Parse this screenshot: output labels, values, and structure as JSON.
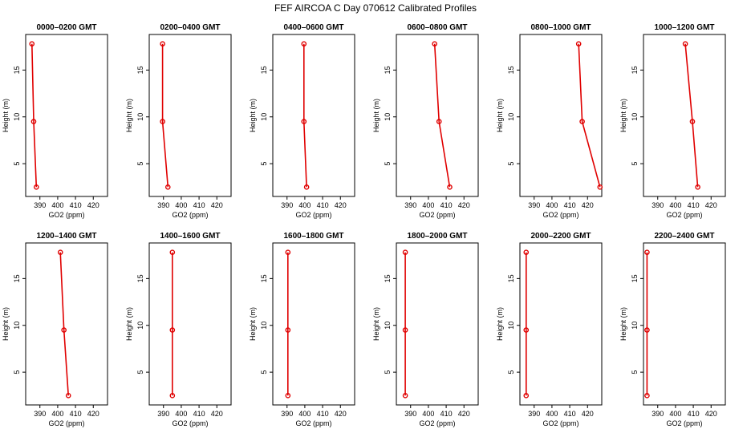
{
  "figure_title": "FEF AIRCOA C  Day 070612  Calibrated Profiles",
  "series_color": "#e00000",
  "chart_data": [
    {
      "type": "line",
      "title": "0000–0200 GMT",
      "xlabel": "GO2 (ppm)",
      "ylabel": "Height (m)",
      "xlim": [
        382,
        428
      ],
      "ylim": [
        1.5,
        18.8
      ],
      "xticks": [
        390,
        400,
        410,
        420
      ],
      "yticks": [
        5,
        10,
        15
      ],
      "x": [
        385.5,
        386.5,
        388
      ],
      "y": [
        17.8,
        9.5,
        2.5
      ]
    },
    {
      "type": "line",
      "title": "0200–0400 GMT",
      "xlabel": "GO2 (ppm)",
      "ylabel": "Height (m)",
      "xlim": [
        382,
        428
      ],
      "ylim": [
        1.5,
        18.8
      ],
      "xticks": [
        390,
        400,
        410,
        420
      ],
      "yticks": [
        5,
        10,
        15
      ],
      "x": [
        389.5,
        389.5,
        392.5
      ],
      "y": [
        17.8,
        9.5,
        2.5
      ]
    },
    {
      "type": "line",
      "title": "0400–0600 GMT",
      "xlabel": "GO2 (ppm)",
      "ylabel": "Height (m)",
      "xlim": [
        382,
        428
      ],
      "ylim": [
        1.5,
        18.8
      ],
      "xticks": [
        390,
        400,
        410,
        420
      ],
      "yticks": [
        5,
        10,
        15
      ],
      "x": [
        399.5,
        399.5,
        401
      ],
      "y": [
        17.8,
        9.5,
        2.5
      ]
    },
    {
      "type": "line",
      "title": "0600–0800 GMT",
      "xlabel": "GO2 (ppm)",
      "ylabel": "Height (m)",
      "xlim": [
        382,
        428
      ],
      "ylim": [
        1.5,
        18.8
      ],
      "xticks": [
        390,
        400,
        410,
        420
      ],
      "yticks": [
        5,
        10,
        15
      ],
      "x": [
        403.5,
        406,
        412
      ],
      "y": [
        17.8,
        9.5,
        2.5
      ]
    },
    {
      "type": "line",
      "title": "0800–1000 GMT",
      "xlabel": "GO2 (ppm)",
      "ylabel": "Height (m)",
      "xlim": [
        382,
        428
      ],
      "ylim": [
        1.5,
        18.8
      ],
      "xticks": [
        390,
        400,
        410,
        420
      ],
      "yticks": [
        5,
        10,
        15
      ],
      "x": [
        415,
        417,
        427
      ],
      "y": [
        17.8,
        9.5,
        2.5
      ]
    },
    {
      "type": "line",
      "title": "1000–1200 GMT",
      "xlabel": "GO2 (ppm)",
      "ylabel": "Height (m)",
      "xlim": [
        382,
        428
      ],
      "ylim": [
        1.5,
        18.8
      ],
      "xticks": [
        390,
        400,
        410,
        420
      ],
      "yticks": [
        5,
        10,
        15
      ],
      "x": [
        405.5,
        409.5,
        412.5
      ],
      "y": [
        17.8,
        9.5,
        2.5
      ]
    },
    {
      "type": "line",
      "title": "1200–1400 GMT",
      "xlabel": "GO2 (ppm)",
      "ylabel": "Height (m)",
      "xlim": [
        382,
        428
      ],
      "ylim": [
        1.5,
        18.8
      ],
      "xticks": [
        390,
        400,
        410,
        420
      ],
      "yticks": [
        5,
        10,
        15
      ],
      "x": [
        401.5,
        403.5,
        406
      ],
      "y": [
        17.8,
        9.5,
        2.5
      ]
    },
    {
      "type": "line",
      "title": "1400–1600 GMT",
      "xlabel": "GO2 (ppm)",
      "ylabel": "Height (m)",
      "xlim": [
        382,
        428
      ],
      "ylim": [
        1.5,
        18.8
      ],
      "xticks": [
        390,
        400,
        410,
        420
      ],
      "yticks": [
        5,
        10,
        15
      ],
      "x": [
        395,
        395,
        395
      ],
      "y": [
        17.8,
        9.5,
        2.5
      ]
    },
    {
      "type": "line",
      "title": "1600–1800 GMT",
      "xlabel": "GO2 (ppm)",
      "ylabel": "Height (m)",
      "xlim": [
        382,
        428
      ],
      "ylim": [
        1.5,
        18.8
      ],
      "xticks": [
        390,
        400,
        410,
        420
      ],
      "yticks": [
        5,
        10,
        15
      ],
      "x": [
        390.5,
        390.5,
        390.5
      ],
      "y": [
        17.8,
        9.5,
        2.5
      ]
    },
    {
      "type": "line",
      "title": "1800–2000 GMT",
      "xlabel": "GO2 (ppm)",
      "ylabel": "Height (m)",
      "xlim": [
        382,
        428
      ],
      "ylim": [
        1.5,
        18.8
      ],
      "xticks": [
        390,
        400,
        410,
        420
      ],
      "yticks": [
        5,
        10,
        15
      ],
      "x": [
        387,
        387,
        387
      ],
      "y": [
        17.8,
        9.5,
        2.5
      ]
    },
    {
      "type": "line",
      "title": "2000–2200 GMT",
      "xlabel": "GO2 (ppm)",
      "ylabel": "Height (m)",
      "xlim": [
        382,
        428
      ],
      "ylim": [
        1.5,
        18.8
      ],
      "xticks": [
        390,
        400,
        410,
        420
      ],
      "yticks": [
        5,
        10,
        15
      ],
      "x": [
        385.5,
        385.5,
        385.5
      ],
      "y": [
        17.8,
        9.5,
        2.5
      ]
    },
    {
      "type": "line",
      "title": "2200–2400 GMT",
      "xlabel": "GO2 (ppm)",
      "ylabel": "Height (m)",
      "xlim": [
        382,
        428
      ],
      "ylim": [
        1.5,
        18.8
      ],
      "xticks": [
        390,
        400,
        410,
        420
      ],
      "yticks": [
        5,
        10,
        15
      ],
      "x": [
        384,
        384,
        384
      ],
      "y": [
        17.8,
        9.5,
        2.5
      ]
    }
  ]
}
